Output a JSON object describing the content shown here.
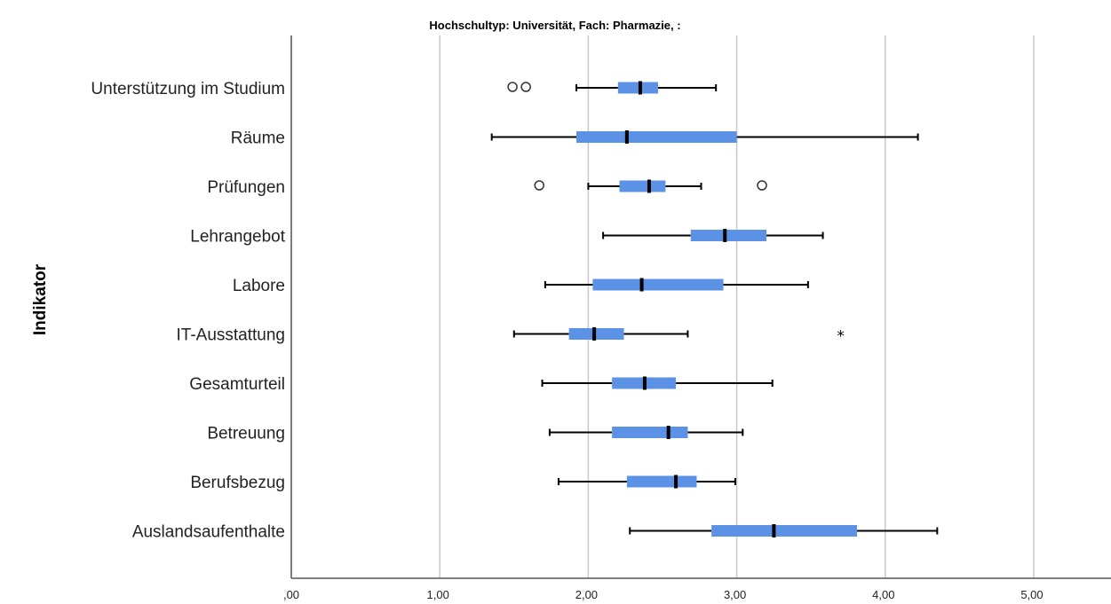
{
  "chart_data": {
    "type": "boxplot",
    "orientation": "horizontal",
    "title": "Hochschultyp: Universität, Fach: Pharmazie,  :",
    "ylabel": "Indikator",
    "xlabel": "",
    "xlim": [
      0,
      5.5
    ],
    "xticks": [
      0,
      1,
      2,
      3,
      4,
      5
    ],
    "xtick_labels": [
      ",00",
      "1,00",
      "2,00",
      "3,00",
      "4,00",
      "5,00"
    ],
    "grid": "vertical lines at x ticks",
    "box_color": "#5b92e5",
    "categories": [
      "Unterstützung im Studium",
      "Räume",
      "Prüfungen",
      "Lehrangebot",
      "Labore",
      "IT-Ausstattung",
      "Gesamturteil",
      "Betreuung",
      "Berufsbezug",
      "Auslandsaufenthalte"
    ],
    "boxes": [
      {
        "category": "Unterstützung im Studium",
        "whisker_low": 1.92,
        "q1": 2.2,
        "median": 2.35,
        "q3": 2.47,
        "whisker_high": 2.86,
        "outliers": [
          1.49,
          1.58
        ],
        "extremes": []
      },
      {
        "category": "Räume",
        "whisker_low": 1.35,
        "q1": 1.92,
        "median": 2.26,
        "q3": 3.0,
        "whisker_high": 4.22,
        "outliers": [],
        "extremes": []
      },
      {
        "category": "Prüfungen",
        "whisker_low": 2.0,
        "q1": 2.21,
        "median": 2.41,
        "q3": 2.52,
        "whisker_high": 2.76,
        "outliers": [
          1.67,
          3.17
        ],
        "extremes": []
      },
      {
        "category": "Lehrangebot",
        "whisker_low": 2.1,
        "q1": 2.69,
        "median": 2.92,
        "q3": 3.2,
        "whisker_high": 3.58,
        "outliers": [],
        "extremes": []
      },
      {
        "category": "Labore",
        "whisker_low": 1.71,
        "q1": 2.03,
        "median": 2.36,
        "q3": 2.91,
        "whisker_high": 3.48,
        "outliers": [],
        "extremes": []
      },
      {
        "category": "IT-Ausstattung",
        "whisker_low": 1.5,
        "q1": 1.87,
        "median": 2.04,
        "q3": 2.24,
        "whisker_high": 2.67,
        "outliers": [],
        "extremes": [
          3.7
        ]
      },
      {
        "category": "Gesamturteil",
        "whisker_low": 1.69,
        "q1": 2.16,
        "median": 2.38,
        "q3": 2.59,
        "whisker_high": 3.24,
        "outliers": [],
        "extremes": []
      },
      {
        "category": "Betreuung",
        "whisker_low": 1.74,
        "q1": 2.16,
        "median": 2.54,
        "q3": 2.67,
        "whisker_high": 3.04,
        "outliers": [],
        "extremes": []
      },
      {
        "category": "Berufsbezug",
        "whisker_low": 1.8,
        "q1": 2.26,
        "median": 2.59,
        "q3": 2.73,
        "whisker_high": 2.99,
        "outliers": [],
        "extremes": []
      },
      {
        "category": "Auslandsaufenthalte",
        "whisker_low": 2.28,
        "q1": 2.83,
        "median": 3.25,
        "q3": 3.81,
        "whisker_high": 4.35,
        "outliers": [],
        "extremes": []
      }
    ]
  }
}
